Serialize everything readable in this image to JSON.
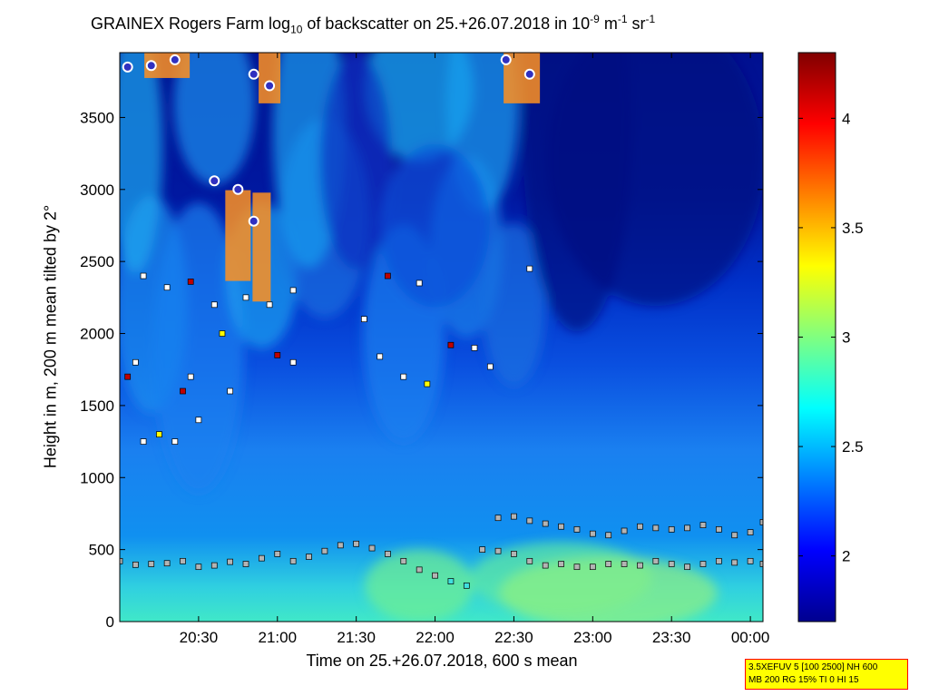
{
  "title": {
    "prefix": "GRAINEX Rogers Farm log",
    "sub": "10",
    "mid": " of backscatter on 25.+26.07.2018 in 10",
    "sup1": "-9",
    "unit1": " m",
    "sup2": "-1",
    "unit2": " sr",
    "sup3": "-1"
  },
  "info_box": {
    "line1": "3.5XEFUV 5 [100 2500] NH 600",
    "line2": "MB 200 RG 15% TI 0 HI 15"
  },
  "colors": {
    "colormap": [
      "#00008f",
      "#0000ff",
      "#0080ff",
      "#00ffff",
      "#80ff80",
      "#ffff00",
      "#ff8000",
      "#ff0000",
      "#800000"
    ],
    "cloud_base_marker": "#ffffff",
    "precip_marker_fill": "#c00000",
    "yellow_marker": "#ffff00",
    "magenta_marker": "#ff00ff",
    "pbl_marker": "#b4b4b4",
    "cyan_marker": "#40e0e0",
    "cloud_top_marker": "#3030c0"
  },
  "chart_data": {
    "type": "heatmap",
    "xlabel": "Time on 25.+26.07.2018, 600 s mean",
    "ylabel": "Height in m, 200 m mean tilted by 2°",
    "x_start": "20:00",
    "x_end": "00:05",
    "x_ticks": [
      "20:30",
      "21:00",
      "21:30",
      "22:00",
      "22:30",
      "23:00",
      "23:30",
      "00:00"
    ],
    "x_tick_hours": [
      20.5,
      21.0,
      21.5,
      22.0,
      22.5,
      23.0,
      23.5,
      24.0
    ],
    "ylim": [
      0,
      3950
    ],
    "y_ticks": [
      0,
      500,
      1000,
      1500,
      2000,
      2500,
      3000,
      3500
    ],
    "colorbar": {
      "range": [
        1.7,
        4.3
      ],
      "ticks": [
        "2",
        "2.5",
        "3",
        "3.5",
        "4"
      ],
      "tick_values": [
        2,
        2.5,
        3,
        3.5,
        4
      ]
    },
    "time_axis_hours": [
      20.0,
      20.1,
      20.2,
      20.3,
      20.4,
      20.5,
      20.6,
      20.7,
      20.8,
      20.9,
      21.0,
      21.1,
      21.2,
      21.3,
      21.4,
      21.5,
      21.6,
      21.7,
      21.8,
      21.9,
      22.0,
      22.1,
      22.2,
      22.3,
      22.4,
      22.5,
      22.6,
      22.7,
      22.8,
      22.9,
      23.0,
      23.1,
      23.2,
      23.3,
      23.4,
      23.5,
      23.6,
      23.7,
      23.8,
      23.9,
      24.0,
      24.08
    ],
    "boundary_layer_height_m": [
      420,
      395,
      400,
      405,
      420,
      380,
      390,
      415,
      400,
      440,
      470,
      420,
      450,
      490,
      530,
      540,
      510,
      470,
      420,
      360,
      320,
      280,
      250,
      500,
      490,
      470,
      420,
      390,
      400,
      380,
      380,
      400,
      400,
      390,
      420,
      400,
      380,
      400,
      420,
      410,
      420,
      400
    ],
    "residual_layer_height_m": [
      null,
      null,
      null,
      null,
      null,
      null,
      null,
      null,
      null,
      null,
      null,
      null,
      null,
      null,
      null,
      null,
      null,
      null,
      null,
      null,
      null,
      null,
      null,
      null,
      720,
      730,
      700,
      680,
      660,
      640,
      610,
      600,
      630,
      660,
      650,
      640,
      650,
      670,
      640,
      600,
      620,
      690
    ],
    "aerosol_layer_markers_m": [
      [
        20.05,
        1700
      ],
      [
        20.1,
        1800
      ],
      [
        20.15,
        1250
      ],
      [
        20.25,
        1300
      ],
      [
        20.35,
        1250
      ],
      [
        20.4,
        1600
      ],
      [
        20.45,
        1700
      ],
      [
        20.5,
        1400
      ],
      [
        20.15,
        2400
      ],
      [
        20.3,
        2320
      ],
      [
        20.45,
        2360
      ],
      [
        20.6,
        2200
      ],
      [
        20.8,
        2250
      ],
      [
        20.95,
        2200
      ],
      [
        21.1,
        2300
      ],
      [
        21.0,
        1850
      ],
      [
        21.1,
        1800
      ],
      [
        20.65,
        2000
      ],
      [
        20.7,
        1600
      ],
      [
        21.55,
        2100
      ],
      [
        21.7,
        2400
      ],
      [
        21.9,
        2350
      ],
      [
        21.65,
        1840
      ],
      [
        21.8,
        1700
      ],
      [
        21.95,
        1650
      ],
      [
        22.1,
        1920
      ],
      [
        22.25,
        1900
      ],
      [
        22.35,
        1770
      ],
      [
        22.6,
        2450
      ]
    ],
    "cloud_base_markers_m": [
      [
        20.05,
        3850
      ],
      [
        20.2,
        3860
      ],
      [
        20.35,
        3900
      ],
      [
        20.6,
        3060
      ],
      [
        20.75,
        3000
      ],
      [
        20.85,
        2780
      ],
      [
        20.85,
        3800
      ],
      [
        20.95,
        3720
      ],
      [
        22.45,
        3900
      ],
      [
        22.6,
        3800
      ]
    ]
  }
}
